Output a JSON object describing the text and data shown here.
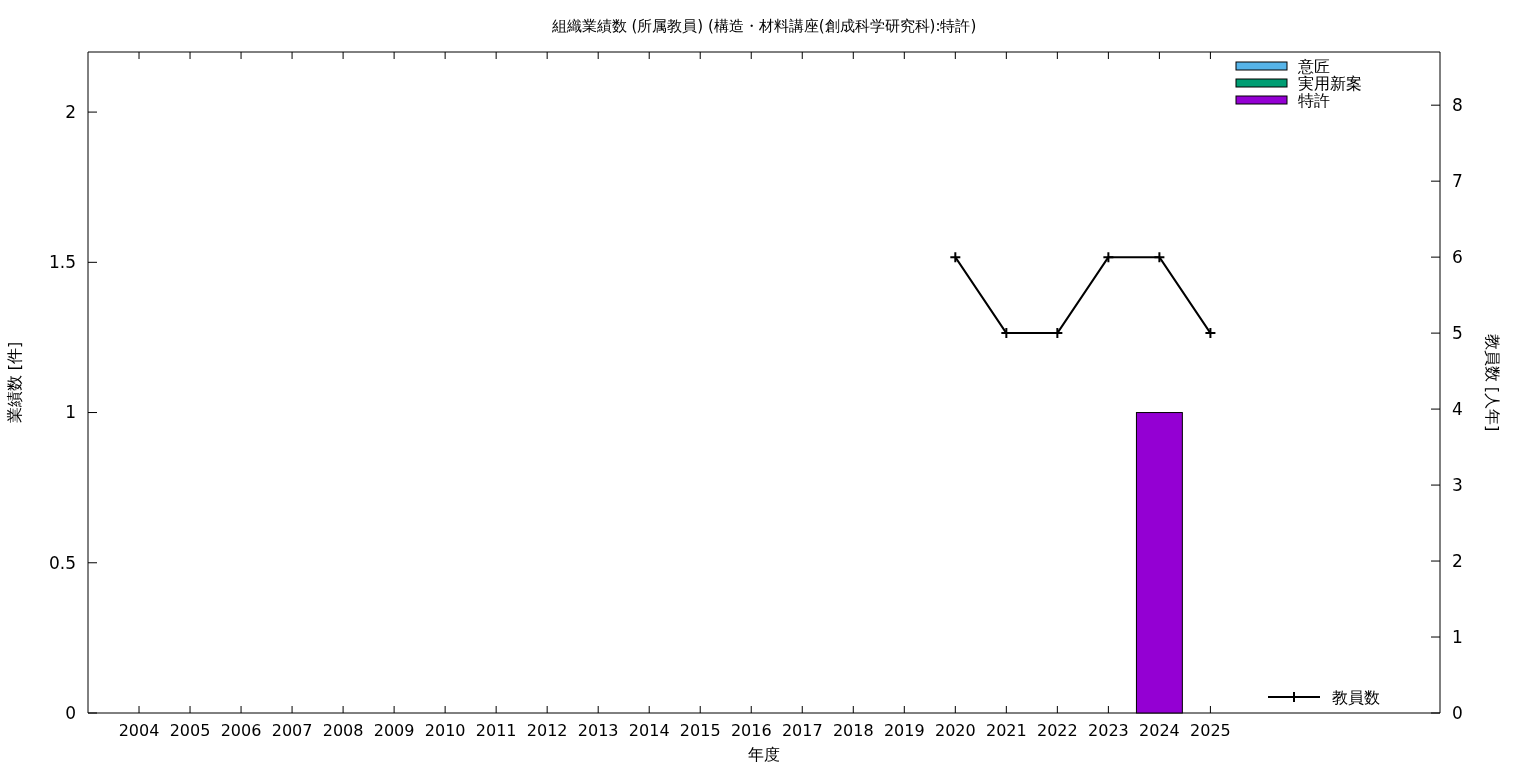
{
  "chart_data": {
    "type": "bar",
    "title": "組織業績数 (所属教員) (構造・材料講座(創成科学研究科):特許)",
    "xlabel": "年度",
    "ylabel": "業績数 [件]",
    "y2label": "教員数 [人年]",
    "categories": [
      "2004",
      "2005",
      "2006",
      "2007",
      "2008",
      "2009",
      "2010",
      "2011",
      "2012",
      "2013",
      "2014",
      "2015",
      "2016",
      "2017",
      "2018",
      "2019",
      "2020",
      "2021",
      "2022",
      "2023",
      "2024",
      "2025",
      null,
      null,
      null,
      null
    ],
    "stacked": true,
    "legend": "top right",
    "grid": false,
    "ylim": [
      0,
      2.2
    ],
    "yticks": [
      0,
      0.5,
      1,
      1.5,
      2
    ],
    "y2lim": [
      0,
      8.7
    ],
    "y2ticks": [
      0,
      1,
      2,
      3,
      4,
      5,
      6,
      7,
      8
    ],
    "series": [
      {
        "name": "意匠",
        "color": "#56b4e9",
        "values": [
          0,
          0,
          0,
          0,
          0,
          0,
          0,
          0,
          0,
          0,
          0,
          0,
          0,
          0,
          0,
          0,
          0,
          0,
          0,
          0,
          0,
          0,
          null,
          null,
          null,
          null
        ]
      },
      {
        "name": "実用新案",
        "color": "#009e73",
        "values": [
          0,
          0,
          0,
          0,
          0,
          0,
          0,
          0,
          0,
          0,
          0,
          0,
          0,
          0,
          0,
          0,
          0,
          0,
          0,
          0,
          0,
          0,
          null,
          null,
          null,
          null
        ]
      },
      {
        "name": "特許",
        "color": "#9400d3",
        "values": [
          0,
          0,
          0,
          0,
          0,
          0,
          0,
          0,
          0,
          0,
          0,
          0,
          0,
          0,
          0,
          0,
          0,
          0,
          0,
          0,
          1,
          0,
          null,
          null,
          null,
          null
        ]
      },
      {
        "name": "教員数",
        "type": "line",
        "axis": "y2",
        "color": "#000000",
        "marker": "cross",
        "line_style": "solid",
        "values": [
          null,
          null,
          null,
          null,
          null,
          null,
          null,
          null,
          null,
          null,
          null,
          null,
          null,
          null,
          null,
          null,
          6,
          5,
          5,
          6,
          6,
          5,
          null,
          null,
          null,
          null
        ]
      }
    ]
  }
}
